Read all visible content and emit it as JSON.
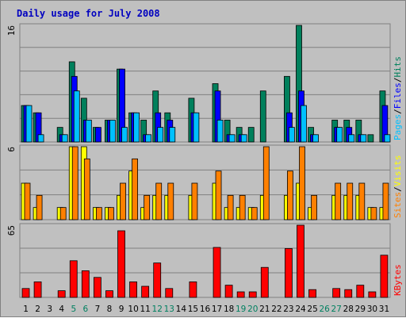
{
  "title": "Daily usage for July 2008",
  "colors": {
    "background": "#c0c0c0",
    "plot_background": "#c0c0c0",
    "gridline": "#808080",
    "hits": "#00805c",
    "files": "#0000ff",
    "pages": "#00c0ff",
    "visits": "#ffff00",
    "sites": "#ff8000",
    "kbytes": "#ff0000",
    "title": "#0000c0",
    "weekend_label": "#008060",
    "weekday_label": "#000000"
  },
  "panels": {
    "top": {
      "ymax_label": "16",
      "ymax": 16,
      "legend": [
        {
          "key": "pages",
          "text": "Pages"
        },
        {
          "key": "sep1",
          "text": "/"
        },
        {
          "key": "files",
          "text": "Files"
        },
        {
          "key": "sep2",
          "text": "/"
        },
        {
          "key": "hits",
          "text": "Hits"
        }
      ]
    },
    "middle": {
      "ymax_label": "6",
      "ymax": 6,
      "legend": [
        {
          "key": "sites",
          "text": "Sites"
        },
        {
          "key": "sep",
          "text": "/"
        },
        {
          "key": "visits",
          "text": "Visits"
        }
      ]
    },
    "bottom": {
      "ymax_label": "65",
      "ymax": 65,
      "legend": [
        {
          "key": "kbytes",
          "text": "KBytes"
        }
      ]
    }
  },
  "chart_data": {
    "type": "bar",
    "title": "Daily usage for July 2008",
    "x": [
      "1",
      "2",
      "3",
      "4",
      "5",
      "6",
      "7",
      "8",
      "9",
      "10",
      "11",
      "12",
      "13",
      "14",
      "15",
      "16",
      "17",
      "18",
      "19",
      "20",
      "21",
      "22",
      "23",
      "24",
      "25",
      "26",
      "27",
      "28",
      "29",
      "30",
      "31"
    ],
    "weekend_days": [
      "5",
      "6",
      "12",
      "13",
      "19",
      "20",
      "26",
      "27"
    ],
    "grid": true,
    "series": [
      {
        "name": "Hits",
        "panel": "top",
        "values": [
          5,
          4,
          0,
          2,
          11,
          6,
          2,
          3,
          10,
          4,
          3,
          7,
          4,
          0,
          6,
          0,
          8,
          3,
          2,
          2,
          7,
          0,
          9,
          16,
          2,
          0,
          3,
          3,
          3,
          1,
          7
        ]
      },
      {
        "name": "Files",
        "panel": "top",
        "values": [
          5,
          4,
          0,
          1,
          9,
          3,
          2,
          3,
          10,
          4,
          1,
          4,
          3,
          0,
          4,
          0,
          7,
          1,
          1,
          0,
          0,
          0,
          4,
          7,
          1,
          0,
          2,
          2,
          1,
          0,
          5
        ]
      },
      {
        "name": "Pages",
        "panel": "top",
        "values": [
          5,
          1,
          0,
          1,
          7,
          3,
          0,
          3,
          2,
          4,
          1,
          2,
          2,
          0,
          4,
          0,
          3,
          1,
          1,
          0,
          0,
          0,
          2,
          5,
          1,
          0,
          2,
          1,
          1,
          0,
          1
        ]
      },
      {
        "name": "Visits",
        "panel": "middle",
        "values": [
          3,
          1,
          0,
          1,
          6,
          6,
          1,
          1,
          2,
          4,
          1,
          2,
          2,
          0,
          2,
          0,
          3,
          1,
          1,
          1,
          2,
          0,
          2,
          3,
          1,
          0,
          2,
          2,
          2,
          1,
          1
        ]
      },
      {
        "name": "Sites",
        "panel": "middle",
        "values": [
          3,
          2,
          0,
          1,
          6,
          5,
          1,
          1,
          3,
          5,
          2,
          3,
          3,
          0,
          3,
          0,
          4,
          2,
          2,
          1,
          6,
          0,
          4,
          6,
          2,
          0,
          3,
          3,
          3,
          1,
          3
        ]
      },
      {
        "name": "KBytes",
        "panel": "bottom",
        "values": [
          8,
          14,
          0,
          6,
          33,
          24,
          18,
          6,
          60,
          14,
          10,
          31,
          8,
          0,
          14,
          0,
          45,
          11,
          5,
          5,
          27,
          0,
          44,
          65,
          7,
          0,
          8,
          7,
          11,
          5,
          38
        ]
      }
    ]
  }
}
